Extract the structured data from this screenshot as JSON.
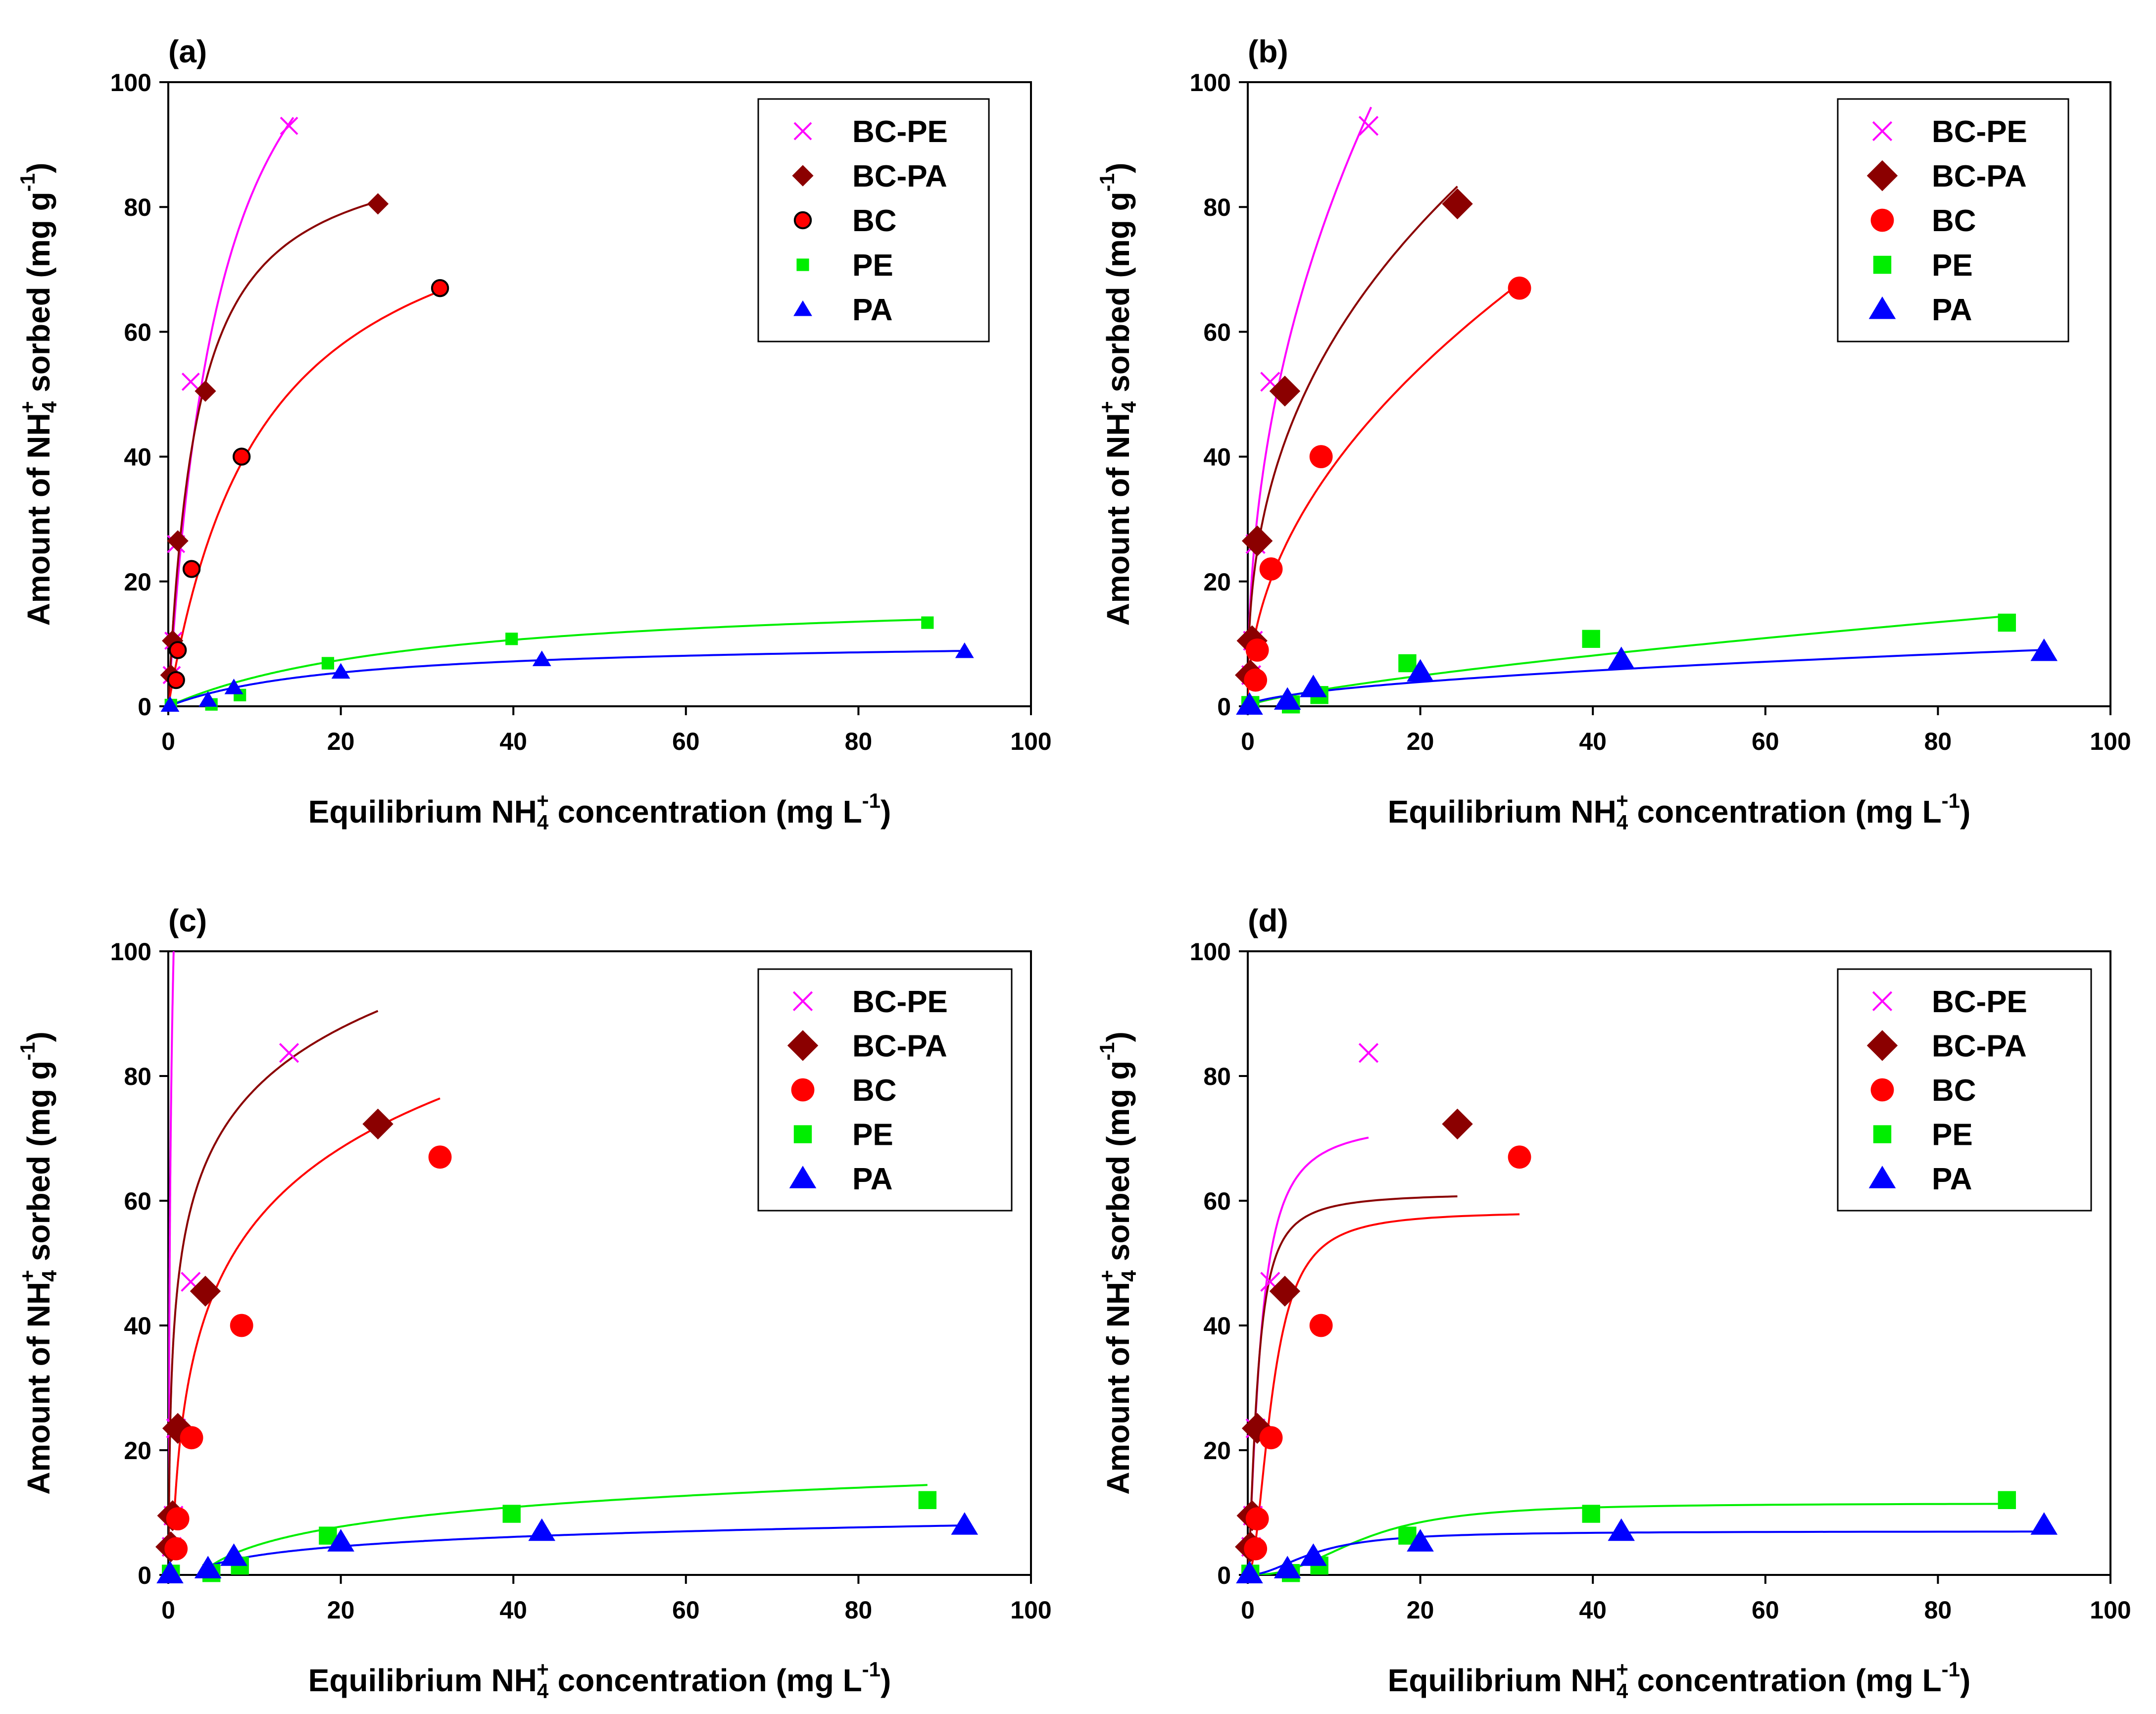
{
  "figure": {
    "panel_labels": [
      "(a)",
      "(b)",
      "(c)",
      "(d)"
    ]
  },
  "colors": {
    "BC-PE": "#ff00ff",
    "BC-PA": "#8b0000",
    "BC": "#ff0000",
    "PE": "#00ee00",
    "PA": "#0000ff"
  },
  "chart_data": [
    {
      "type": "scatter",
      "panel": "(a)",
      "xlabel": {
        "pre": "Equilibrium NH",
        "sub": "4",
        "sup": "+",
        "post": " concentration (mg L",
        "exp": "-1",
        "end": ")"
      },
      "ylabel": {
        "pre": "Amount of NH",
        "sub": "4",
        "sup": "+",
        "post": " sorbed (mg g",
        "exp": "-1",
        "end": ")"
      },
      "xlim": [
        0,
        100
      ],
      "ylim": [
        0,
        100
      ],
      "xticks": [
        0,
        20,
        40,
        60,
        80,
        100
      ],
      "yticks": [
        0,
        20,
        40,
        60,
        80,
        100
      ],
      "marker_style": "small",
      "legend": [
        "BC-PE",
        "BC-PA",
        "BC",
        "PE",
        "PA"
      ],
      "series": [
        {
          "name": "BC-PE",
          "marker": "x",
          "points": [
            [
              0.4,
              5
            ],
            [
              0.6,
              10.5
            ],
            [
              0.9,
              26
            ],
            [
              2.6,
              52
            ],
            [
              14,
              93
            ]
          ],
          "fit": {
            "model": "langmuir",
            "qmax": 135,
            "k": 0.16,
            "xmax": 14.5
          }
        },
        {
          "name": "BC-PA",
          "marker": "diamond",
          "points": [
            [
              0.3,
              5
            ],
            [
              0.5,
              10.5
            ],
            [
              1.1,
              26.5
            ],
            [
              4.3,
              50.5
            ],
            [
              24.3,
              80.5
            ]
          ],
          "fit": {
            "model": "langmuir",
            "qmax": 92,
            "k": 0.3,
            "xmax": 25
          }
        },
        {
          "name": "BC",
          "marker": "circle",
          "edge": "#000000",
          "points": [
            [
              0.9,
              4.2
            ],
            [
              1.1,
              9
            ],
            [
              2.7,
              22
            ],
            [
              8.5,
              40
            ],
            [
              31.5,
              67
            ]
          ],
          "fit": {
            "model": "langmuir",
            "qmax": 90,
            "k": 0.09,
            "xmax": 32
          }
        },
        {
          "name": "PE",
          "marker": "square",
          "points": [
            [
              0.3,
              0.2
            ],
            [
              5,
              0.3
            ],
            [
              8.3,
              1.8
            ],
            [
              18.5,
              6.9
            ],
            [
              39.8,
              10.8
            ],
            [
              88,
              13.4
            ]
          ],
          "fit": {
            "model": "langmuir",
            "qmax": 18.7,
            "k": 0.033,
            "xmax": 88,
            "xmin": 0.5
          }
        },
        {
          "name": "PA",
          "marker": "triangle",
          "points": [
            [
              0.2,
              0.2
            ],
            [
              4.6,
              1
            ],
            [
              7.6,
              3
            ],
            [
              20,
              5.5
            ],
            [
              43.3,
              7.5
            ],
            [
              92.3,
              8.8
            ]
          ],
          "fit": {
            "model": "langmuir",
            "qmax": 10.8,
            "k": 0.05,
            "xmax": 92.3,
            "xmin": 0.5
          }
        }
      ]
    },
    {
      "type": "scatter",
      "panel": "(b)",
      "xlabel": {
        "pre": "Equilibrium NH",
        "sub": "4",
        "sup": "+",
        "post": " concentration (mg L",
        "exp": "-1",
        "end": ")"
      },
      "ylabel": {
        "pre": "Amount of NH",
        "sub": "4",
        "sup": "+",
        "post": " sorbed (mg g",
        "exp": "-1",
        "end": ")"
      },
      "xlim": [
        0,
        100
      ],
      "ylim": [
        0,
        100
      ],
      "xticks": [
        0,
        20,
        40,
        60,
        80,
        100
      ],
      "yticks": [
        0,
        20,
        40,
        60,
        80,
        100
      ],
      "marker_style": "large",
      "legend": [
        "BC-PE",
        "BC-PA",
        "BC",
        "PE",
        "PA"
      ],
      "series": [
        {
          "name": "BC-PE",
          "marker": "x",
          "points": [
            [
              0.4,
              5
            ],
            [
              0.6,
              10.5
            ],
            [
              0.9,
              26
            ],
            [
              2.6,
              52
            ],
            [
              14,
              93
            ]
          ],
          "fit": {
            "model": "freundlich",
            "kf": 29,
            "n": 0.45,
            "xmax": 14.3
          }
        },
        {
          "name": "BC-PA",
          "marker": "diamond",
          "points": [
            [
              0.3,
              5
            ],
            [
              0.5,
              10.5
            ],
            [
              1.1,
              26.5
            ],
            [
              4.3,
              50.5
            ],
            [
              24.3,
              80.5
            ]
          ],
          "fit": {
            "model": "freundlich",
            "kf": 24,
            "n": 0.39,
            "xmax": 24.3
          }
        },
        {
          "name": "BC",
          "marker": "circle",
          "points": [
            [
              0.9,
              4.2
            ],
            [
              1.1,
              9
            ],
            [
              2.7,
              22
            ],
            [
              8.5,
              40
            ],
            [
              31.5,
              67
            ]
          ],
          "fit": {
            "model": "freundlich",
            "kf": 12.5,
            "n": 0.49,
            "xmax": 31.5
          }
        },
        {
          "name": "PE",
          "marker": "square",
          "points": [
            [
              0.3,
              0.2
            ],
            [
              5,
              0.3
            ],
            [
              8.3,
              1.8
            ],
            [
              18.5,
              6.9
            ],
            [
              39.8,
              10.8
            ],
            [
              88,
              13.4
            ]
          ],
          "fit": {
            "model": "freundlich",
            "kf": 0.55,
            "n": 0.73,
            "xmax": 88
          }
        },
        {
          "name": "PA",
          "marker": "triangle",
          "points": [
            [
              0.2,
              0.2
            ],
            [
              4.6,
              1
            ],
            [
              7.6,
              3
            ],
            [
              20,
              5.5
            ],
            [
              43.3,
              7.5
            ],
            [
              92.3,
              8.8
            ]
          ],
          "fit": {
            "model": "freundlich",
            "kf": 0.75,
            "n": 0.55,
            "xmax": 92.3
          }
        }
      ]
    },
    {
      "type": "scatter",
      "panel": "(c)",
      "xlabel": {
        "pre": "Equilibrium NH",
        "sub": "4",
        "sup": "+",
        "post": " concentration (mg L",
        "exp": "-1",
        "end": ")"
      },
      "ylabel": {
        "pre": "Amount of NH",
        "sub": "4",
        "sup": "+",
        "post": " sorbed (mg g",
        "exp": "-1",
        "end": ")"
      },
      "xlim": [
        0,
        100
      ],
      "ylim": [
        0,
        100
      ],
      "xticks": [
        0,
        20,
        40,
        60,
        80,
        100
      ],
      "yticks": [
        0,
        20,
        40,
        60,
        80,
        100
      ],
      "marker_style": "large",
      "legend": [
        "BC-PE",
        "BC-PA",
        "BC",
        "PE",
        "PA"
      ],
      "series": [
        {
          "name": "BC-PE",
          "marker": "x",
          "points": [
            [
              0.4,
              4.5
            ],
            [
              0.6,
              9.5
            ],
            [
              0.9,
              23.5
            ],
            [
              2.6,
              47
            ],
            [
              14,
              83.7
            ]
          ],
          "fit": {
            "model": "temkin",
            "a": 24,
            "b": 37,
            "xmin": 0.05,
            "xmax": 14
          }
        },
        {
          "name": "BC-PA",
          "marker": "diamond",
          "points": [
            [
              0.3,
              4.5
            ],
            [
              0.5,
              9.5
            ],
            [
              1.1,
              23.5
            ],
            [
              4.3,
              45.5
            ],
            [
              24.3,
              72.3
            ]
          ],
          "fit": {
            "model": "temkin",
            "a": 24,
            "b": 14.2,
            "xmin": 0.05,
            "xmax": 24.3
          }
        },
        {
          "name": "BC",
          "marker": "circle",
          "points": [
            [
              0.9,
              4.2
            ],
            [
              1.1,
              9
            ],
            [
              2.7,
              22
            ],
            [
              8.5,
              40
            ],
            [
              31.5,
              67
            ]
          ],
          "fit": {
            "model": "temkin",
            "a": 2.5,
            "b": 17.5,
            "xmin": 0.7,
            "xmax": 31.5
          }
        },
        {
          "name": "PE",
          "marker": "square",
          "points": [
            [
              0.3,
              0.2
            ],
            [
              5,
              0.3
            ],
            [
              8.3,
              1.5
            ],
            [
              18.5,
              6.3
            ],
            [
              39.8,
              9.8
            ],
            [
              88,
              12
            ]
          ],
          "fit": {
            "model": "temkin",
            "a": 0.28,
            "b": 4.5,
            "xmin": 4.8,
            "xmax": 88
          }
        },
        {
          "name": "PA",
          "marker": "triangle",
          "points": [
            [
              0.2,
              0.2
            ],
            [
              4.6,
              1
            ],
            [
              7.6,
              3
            ],
            [
              20,
              5.3
            ],
            [
              43.3,
              7
            ],
            [
              92.3,
              8
            ]
          ],
          "fit": {
            "model": "temkin",
            "a": 0.4,
            "b": 2.2,
            "xmin": 4.6,
            "xmax": 92.3
          }
        }
      ]
    },
    {
      "type": "scatter",
      "panel": "(d)",
      "xlabel": {
        "pre": "Equilibrium NH",
        "sub": "4",
        "sup": "+",
        "post": " concentration (mg L",
        "exp": "-1",
        "end": ")"
      },
      "ylabel": {
        "pre": "Amount of NH",
        "sub": "4",
        "sup": "+",
        "post": " sorbed (mg g",
        "exp": "-1",
        "end": ")"
      },
      "xlim": [
        0,
        100
      ],
      "ylim": [
        0,
        100
      ],
      "xticks": [
        0,
        20,
        40,
        60,
        80,
        100
      ],
      "yticks": [
        0,
        20,
        40,
        60,
        80,
        100
      ],
      "marker_style": "large",
      "legend": [
        "BC-PE",
        "BC-PA",
        "BC",
        "PE",
        "PA"
      ],
      "series": [
        {
          "name": "BC-PE",
          "marker": "x",
          "points": [
            [
              0.4,
              4.5
            ],
            [
              0.6,
              9.5
            ],
            [
              0.9,
              23.5
            ],
            [
              2.6,
              47
            ],
            [
              14,
              83.7
            ]
          ],
          "fit": {
            "model": "sips",
            "qmax": 73,
            "k": 0.7,
            "n": 1.4,
            "xmax": 14
          }
        },
        {
          "name": "BC-PA",
          "marker": "diamond",
          "points": [
            [
              0.3,
              4.5
            ],
            [
              0.5,
              9.5
            ],
            [
              1.1,
              23.5
            ],
            [
              4.3,
              45.5
            ],
            [
              24.3,
              72.3
            ]
          ],
          "fit": {
            "model": "sips",
            "qmax": 61.3,
            "k": 0.9,
            "n": 1.5,
            "xmax": 24.3
          }
        },
        {
          "name": "BC",
          "marker": "circle",
          "points": [
            [
              0.9,
              4.2
            ],
            [
              1.1,
              9
            ],
            [
              2.7,
              22
            ],
            [
              8.5,
              40
            ],
            [
              31.5,
              67
            ]
          ],
          "fit": {
            "model": "sips",
            "qmax": 58.3,
            "k": 0.35,
            "n": 2,
            "xmax": 31.5
          }
        },
        {
          "name": "PE",
          "marker": "square",
          "points": [
            [
              0.3,
              0.2
            ],
            [
              5,
              0.3
            ],
            [
              8.3,
              1.5
            ],
            [
              18.5,
              6.3
            ],
            [
              39.8,
              9.8
            ],
            [
              88,
              12
            ]
          ],
          "fit": {
            "model": "sips",
            "qmax": 11.5,
            "k": 0.075,
            "n": 2.5,
            "xmax": 88
          }
        },
        {
          "name": "PA",
          "marker": "triangle",
          "points": [
            [
              0.2,
              0.2
            ],
            [
              4.6,
              1
            ],
            [
              7.6,
              3
            ],
            [
              20,
              5.3
            ],
            [
              43.3,
              7
            ],
            [
              92.3,
              8
            ]
          ],
          "fit": {
            "model": "sips",
            "qmax": 7,
            "k": 0.13,
            "n": 2,
            "xmax": 92.3
          }
        }
      ]
    }
  ]
}
